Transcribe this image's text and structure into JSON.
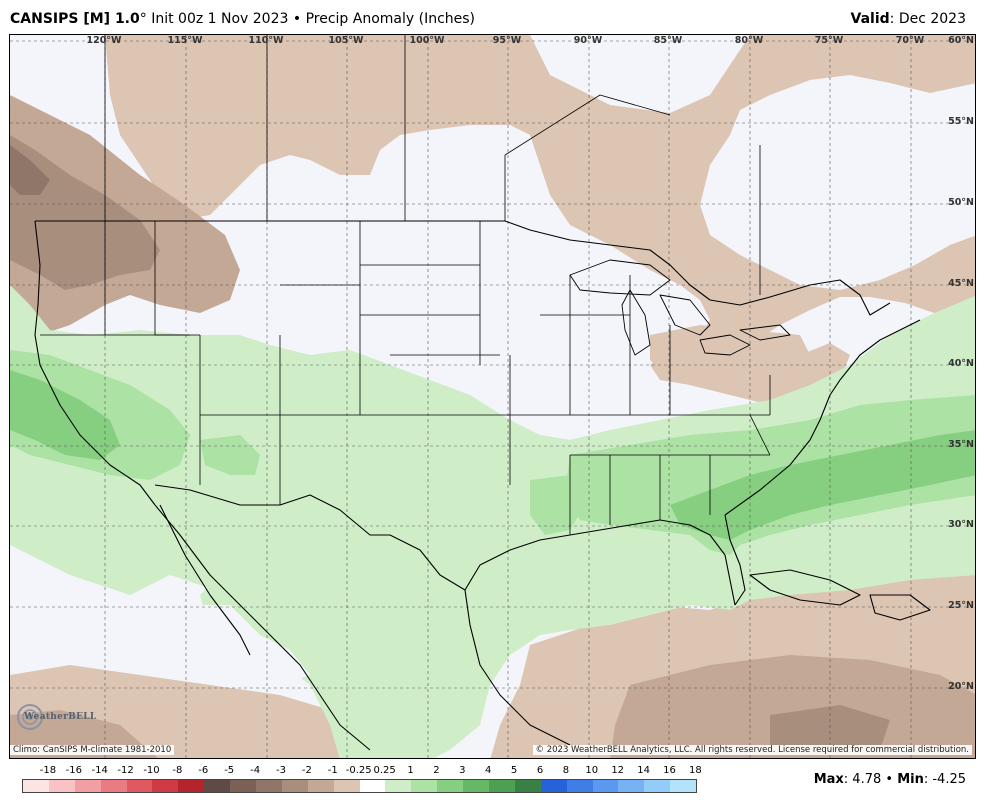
{
  "header": {
    "model": "CANSIPS [M] 1.0",
    "deg": "°",
    "rest": " Init 00z 1 Nov 2023 • Precip Anomaly (Inches)",
    "valid_label": "Valid",
    "valid_value": ": Dec 2023"
  },
  "map": {
    "lon_labels": [
      "120°W",
      "115°W",
      "110°W",
      "105°W",
      "100°W",
      "95°W",
      "90°W",
      "85°W",
      "80°W",
      "75°W",
      "70°W"
    ],
    "lat_labels": [
      "60°N",
      "55°N",
      "50°N",
      "45°N",
      "40°N",
      "35°N",
      "30°N",
      "25°N",
      "20°N"
    ],
    "climo_note": "Climo: CanSIPS M-climate 1981-2010",
    "copyright": "© 2023 WeatherBELL Analytics, LLC. All rights reserved. License required for commercial distribution.",
    "logo_text": "WeatherBELL"
  },
  "legend": {
    "ticks": [
      "-18",
      "-16",
      "-14",
      "-12",
      "-10",
      "-8",
      "-6",
      "-5",
      "-4",
      "-3",
      "-2",
      "-1",
      "-0.25",
      "0.25",
      "1",
      "2",
      "3",
      "4",
      "5",
      "6",
      "8",
      "10",
      "12",
      "14",
      "16",
      "18"
    ],
    "colors": [
      "#fde4e4",
      "#f9c3c6",
      "#f29fa4",
      "#ea7b82",
      "#e05860",
      "#cf3a44",
      "#b3242d",
      "#5f4a45",
      "#7a6055",
      "#8f7668",
      "#a88e7d",
      "#c3a896",
      "#dcc5b3",
      "#ffffff",
      "#cfeec8",
      "#ace2a4",
      "#86cf80",
      "#66b865",
      "#4d9f52",
      "#3a7f44",
      "#2662d9",
      "#3f7ee6",
      "#5b98ef",
      "#77b2f5",
      "#93cbf9",
      "#b3e3fb"
    ]
  },
  "stats": {
    "max_label": "Max",
    "max_value": ": 4.78 • ",
    "min_label": "Min",
    "min_value": ": -4.25"
  }
}
